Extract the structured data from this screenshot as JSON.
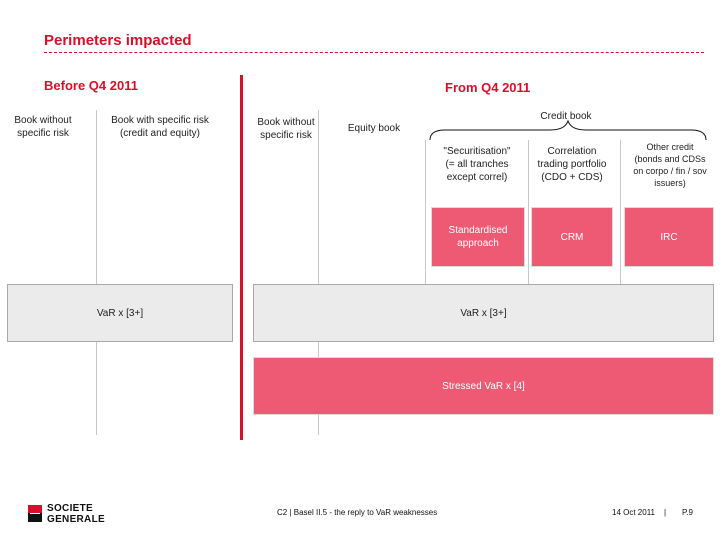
{
  "title": "Perimeters impacted",
  "before": {
    "heading": "Before Q4 2011",
    "col1": "Book without\nspecific risk",
    "col2": "Book with specific risk\n(credit and equity)"
  },
  "after": {
    "heading": "From Q4 2011",
    "col1": "Book without\nspecific risk",
    "col2": "Equity book",
    "credit_book": "Credit book",
    "securitisation": "\"Securitisation\"\n(= all tranches\nexcept correl)",
    "correlation": "Correlation\ntrading portfolio\n(CDO + CDS)",
    "other_credit": "Other credit\n(bonds and CDSs\non corpo / fin / sov\nissuers)"
  },
  "boxes": {
    "standardised": "Standardised\napproach",
    "crm": "CRM",
    "irc": "IRC",
    "var_before": "VaR x [3+]",
    "var_after": "VaR x [3+]",
    "stressed_var": "Stressed VaR x [4]"
  },
  "footer": {
    "center": "C2  |  Basel II.5 - the reply to VaR weaknesses",
    "date": "14 Oct 2011",
    "sep": "|",
    "page": "P.9",
    "logo_line1": "SOCIETE",
    "logo_line2": "GENERALE"
  },
  "colors": {
    "accent": "#d5102a",
    "pink_box": "#ee5a74",
    "grey_box": "#ebebeb"
  }
}
